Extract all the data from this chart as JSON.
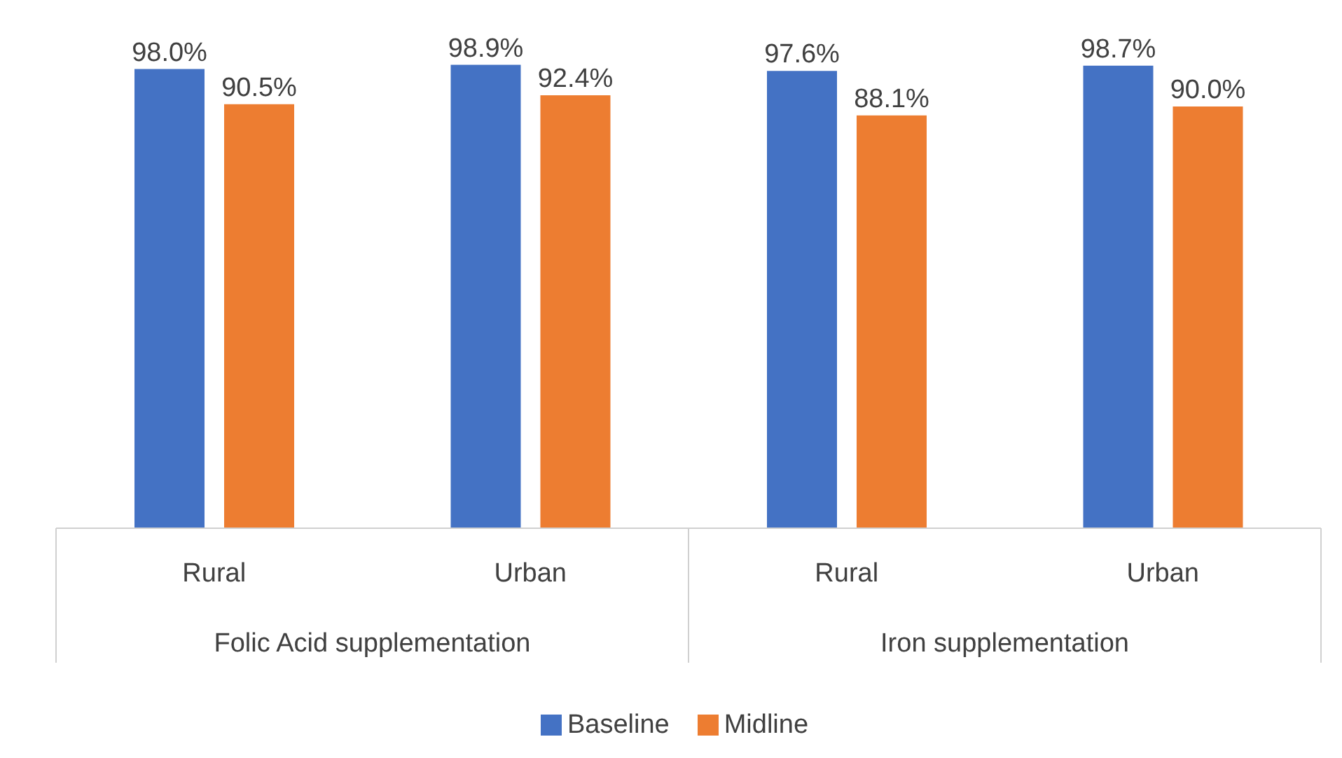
{
  "chart_data": {
    "type": "bar",
    "categories": [
      "Rural",
      "Urban",
      "Rural",
      "Urban"
    ],
    "series": [
      {
        "name": "Baseline",
        "color": "#4472c4",
        "values": [
          98.0,
          98.9,
          97.6,
          98.7
        ],
        "value_labels": [
          "98.0%",
          "98.9%",
          "97.6%",
          "98.7%"
        ]
      },
      {
        "name": "Midline",
        "color": "#ed7d31",
        "values": [
          90.5,
          92.4,
          88.1,
          90.0
        ],
        "value_labels": [
          "90.5%",
          "92.4%",
          "88.1%",
          "90.0%"
        ]
      }
    ],
    "annotations": [
      "Folic Acid supplementation",
      "Iron supplementation"
    ],
    "legend": "bottom",
    "grid": false
  }
}
